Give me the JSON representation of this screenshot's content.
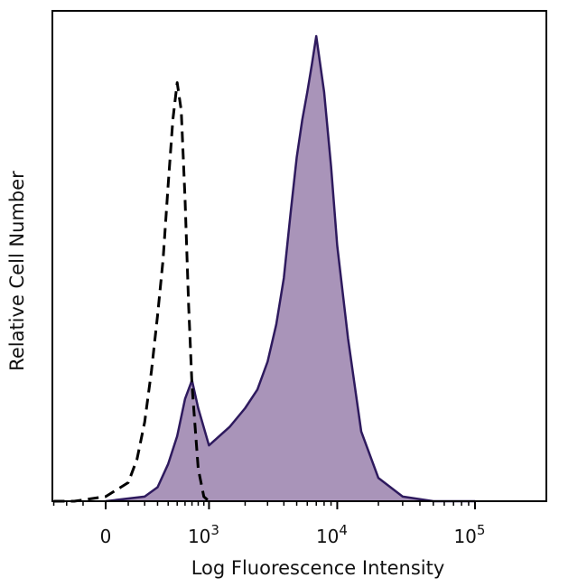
{
  "chart_data": {
    "type": "area",
    "title": "",
    "xlabel": "Log Fluorescence Intensity",
    "ylabel": "Relative Cell Number",
    "x_scale": "biexponential",
    "x_ticks": [
      {
        "value": 0,
        "label": "0"
      },
      {
        "value": 1000,
        "base": "10",
        "exp": "3"
      },
      {
        "value": 10000,
        "base": "10",
        "exp": "4"
      },
      {
        "value": 100000,
        "base": "10",
        "exp": "5"
      }
    ],
    "ylim": [
      0,
      100
    ],
    "grid": false,
    "legend": "none",
    "series": [
      {
        "style": "dashed",
        "color": "#000000",
        "x": [
          -300,
          -150,
          0,
          100,
          150,
          200,
          250,
          300,
          350,
          400,
          450,
          500,
          550,
          600,
          650,
          700,
          800,
          900,
          1000
        ],
        "values": [
          0,
          0,
          1,
          4,
          9,
          17,
          28,
          40,
          52,
          68,
          82,
          90,
          84,
          65,
          42,
          25,
          7,
          1,
          0
        ]
      },
      {
        "style": "filled",
        "color": "#2e1a5e",
        "fill": "#a994b9",
        "x": [
          0,
          200,
          300,
          400,
          500,
          600,
          700,
          800,
          1000,
          1500,
          2000,
          2500,
          3000,
          3500,
          4000,
          4500,
          5000,
          5500,
          6000,
          6500,
          7000,
          8000,
          9000,
          10000,
          12000,
          15000,
          20000,
          30000,
          50000,
          100000
        ],
        "values": [
          0,
          1,
          3,
          8,
          14,
          22,
          26,
          20,
          12,
          16,
          20,
          24,
          30,
          38,
          48,
          62,
          74,
          82,
          88,
          94,
          100,
          88,
          72,
          55,
          35,
          15,
          5,
          1,
          0,
          0
        ]
      }
    ]
  }
}
